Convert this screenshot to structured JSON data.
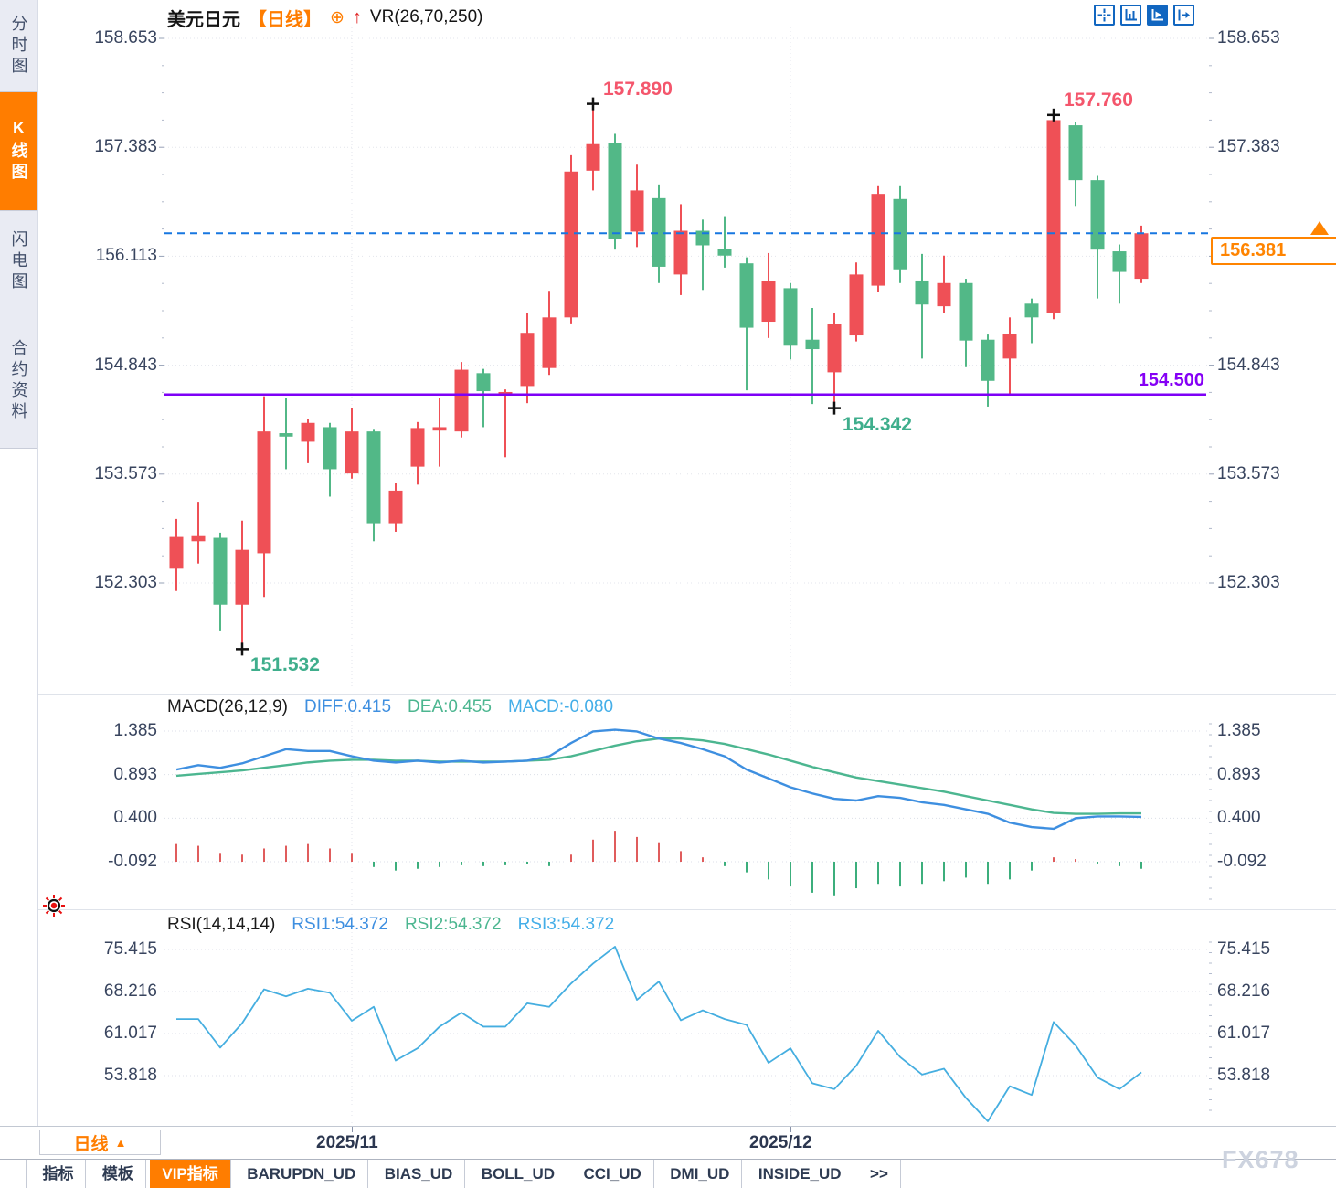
{
  "header": {
    "symbol": "美元日元",
    "period_tag": "【日线】",
    "plus_icon": "⊕",
    "indicator": "VR(26,70,250)"
  },
  "sidebar": {
    "items": [
      "分时图",
      "K线图",
      "闪电图",
      "合约资料"
    ],
    "active_index": 1
  },
  "toolbar_icons": [
    "pan-crosshair",
    "axis-scale",
    "axis-play-active",
    "collapse-right"
  ],
  "axes": {
    "main": [
      "158.653",
      "157.383",
      "156.113",
      "154.843",
      "153.573",
      "152.303"
    ],
    "macd": [
      "1.385",
      "0.893",
      "0.400",
      "-0.092"
    ],
    "rsi": [
      "75.415",
      "68.216",
      "61.017",
      "53.818"
    ]
  },
  "macd_header": {
    "title": "MACD(26,12,9)",
    "diff": "DIFF:0.415",
    "dea": "DEA:0.455",
    "macd": "MACD:-0.080"
  },
  "rsi_header": {
    "title": "RSI(14,14,14)",
    "rsi1": "RSI1:54.372",
    "rsi2": "RSI2:54.372",
    "rsi3": "RSI3:54.372"
  },
  "overlay": {
    "price_tag": "156.381",
    "support_label": "154.500"
  },
  "xaxis": {
    "period_button": "日线",
    "caret": "▲",
    "labels": [
      "2025/11",
      "2025/12"
    ]
  },
  "tabs": {
    "items": [
      "指标",
      "模板",
      "VIP指标",
      "BARUPDN_UD",
      "BIAS_UD",
      "BOLL_UD",
      "CCI_UD",
      "DMI_UD",
      "INSIDE_UD",
      ">>"
    ],
    "active_index": 2
  },
  "watermark": "FX678",
  "colors": {
    "accent_orange": "#ff7d00",
    "candle_up": "#ef5056",
    "candle_down": "#52b887",
    "support_purple": "#7e00f6",
    "last_price_blue": "#1777e0",
    "diff_blue": "#3e8fe0",
    "dea_green": "#4cb690",
    "rsi_line": "#45aee0",
    "hist_up": "#e05c5c",
    "hist_down": "#3cae7c",
    "annotation_up": "#f4566c",
    "annotation_down": "#3fae8c",
    "grid": "#e3e5ec",
    "tick": "#96a0b6",
    "axis_text": "#38445e",
    "toolbar_blue": "#1166c0",
    "marker_black": "#111111"
  },
  "chart_data": {
    "type": "candlestick",
    "title": "美元日元 日线 (USD/JPY daily)",
    "main_axis_values": [
      158.653,
      157.383,
      156.113,
      154.843,
      153.573,
      152.303
    ],
    "macd_axis_values": [
      1.385,
      0.893,
      0.4,
      -0.092
    ],
    "rsi_axis_values": [
      75.415,
      68.216,
      61.017,
      53.818
    ],
    "month_gridlines": [
      {
        "label": "2025/11",
        "index": 8
      },
      {
        "label": "2025/12",
        "index": 28
      }
    ],
    "support_line": 154.5,
    "last_price": 156.381,
    "candles": [
      [
        152.47,
        153.05,
        152.21,
        152.84
      ],
      [
        152.79,
        153.25,
        152.53,
        152.86
      ],
      [
        152.83,
        152.89,
        151.75,
        152.05
      ],
      [
        152.05,
        153.03,
        151.532,
        152.69
      ],
      [
        152.65,
        154.48,
        152.14,
        154.07
      ],
      [
        154.05,
        154.46,
        153.63,
        154.01
      ],
      [
        153.95,
        154.22,
        153.7,
        154.17
      ],
      [
        154.12,
        154.17,
        153.31,
        153.63
      ],
      [
        153.58,
        154.34,
        153.52,
        154.07
      ],
      [
        154.07,
        154.1,
        152.79,
        153.0
      ],
      [
        153.0,
        153.47,
        152.9,
        153.38
      ],
      [
        153.66,
        154.18,
        153.45,
        154.11
      ],
      [
        154.08,
        154.46,
        153.66,
        154.12
      ],
      [
        154.07,
        154.88,
        154.0,
        154.79
      ],
      [
        154.75,
        154.8,
        154.12,
        154.54
      ],
      [
        154.5,
        154.56,
        153.77,
        154.53
      ],
      [
        154.6,
        155.45,
        154.4,
        155.22
      ],
      [
        154.81,
        155.71,
        154.73,
        155.4
      ],
      [
        155.4,
        157.29,
        155.33,
        157.1
      ],
      [
        157.11,
        157.89,
        156.88,
        157.42
      ],
      [
        157.43,
        157.54,
        156.19,
        156.31
      ],
      [
        156.4,
        157.18,
        156.22,
        156.88
      ],
      [
        156.79,
        156.95,
        155.8,
        155.99
      ],
      [
        155.9,
        156.72,
        155.66,
        156.41
      ],
      [
        156.41,
        156.54,
        155.72,
        156.24
      ],
      [
        156.2,
        156.58,
        155.98,
        156.12
      ],
      [
        156.03,
        156.1,
        154.55,
        155.28
      ],
      [
        155.35,
        156.15,
        155.16,
        155.82
      ],
      [
        155.74,
        155.8,
        154.91,
        155.07
      ],
      [
        155.14,
        155.51,
        154.39,
        155.03
      ],
      [
        154.76,
        155.45,
        154.342,
        155.32
      ],
      [
        155.19,
        156.04,
        155.12,
        155.9
      ],
      [
        155.77,
        156.94,
        155.7,
        156.84
      ],
      [
        156.78,
        156.94,
        155.8,
        155.96
      ],
      [
        155.83,
        156.14,
        154.92,
        155.55
      ],
      [
        155.53,
        156.12,
        155.45,
        155.8
      ],
      [
        155.8,
        155.85,
        154.82,
        155.13
      ],
      [
        155.14,
        155.2,
        154.36,
        154.66
      ],
      [
        154.92,
        155.4,
        154.5,
        155.21
      ],
      [
        155.56,
        155.62,
        155.1,
        155.4
      ],
      [
        155.45,
        157.76,
        155.38,
        157.7
      ],
      [
        157.64,
        157.68,
        156.7,
        157.0
      ],
      [
        157.0,
        157.05,
        155.62,
        156.19
      ],
      [
        156.17,
        156.25,
        155.56,
        155.93
      ],
      [
        155.85,
        156.47,
        155.8,
        156.381
      ]
    ],
    "annotations": [
      {
        "text": "157.890",
        "index": 19,
        "price": 157.89,
        "placement": "above-right",
        "tone": "up"
      },
      {
        "text": "157.760",
        "index": 40,
        "price": 157.76,
        "placement": "above-right",
        "tone": "up"
      },
      {
        "text": "151.532",
        "index": 3,
        "price": 151.532,
        "placement": "below-right",
        "tone": "down"
      },
      {
        "text": "154.342",
        "index": 30,
        "price": 154.342,
        "placement": "below-right",
        "tone": "down"
      }
    ],
    "macd": {
      "params": "26,12,9",
      "diff": [
        0.95,
        1.0,
        0.97,
        1.02,
        1.1,
        1.18,
        1.16,
        1.16,
        1.1,
        1.05,
        1.03,
        1.05,
        1.03,
        1.05,
        1.03,
        1.04,
        1.05,
        1.1,
        1.25,
        1.38,
        1.4,
        1.38,
        1.3,
        1.25,
        1.18,
        1.1,
        0.95,
        0.85,
        0.75,
        0.68,
        0.62,
        0.6,
        0.65,
        0.63,
        0.58,
        0.55,
        0.5,
        0.45,
        0.35,
        0.3,
        0.28,
        0.4,
        0.42,
        0.42,
        0.415
      ],
      "dea": [
        0.88,
        0.9,
        0.92,
        0.94,
        0.97,
        1.0,
        1.03,
        1.05,
        1.06,
        1.06,
        1.05,
        1.05,
        1.04,
        1.04,
        1.04,
        1.04,
        1.05,
        1.06,
        1.1,
        1.16,
        1.22,
        1.27,
        1.3,
        1.3,
        1.28,
        1.24,
        1.18,
        1.12,
        1.05,
        0.98,
        0.92,
        0.86,
        0.82,
        0.78,
        0.74,
        0.7,
        0.65,
        0.6,
        0.55,
        0.5,
        0.46,
        0.45,
        0.45,
        0.455,
        0.455
      ],
      "hist": [
        0.2,
        0.18,
        0.1,
        0.08,
        0.15,
        0.18,
        0.2,
        0.15,
        0.1,
        -0.06,
        -0.1,
        -0.08,
        -0.06,
        -0.04,
        -0.05,
        -0.04,
        -0.03,
        -0.05,
        0.08,
        0.25,
        0.35,
        0.28,
        0.22,
        0.12,
        0.05,
        -0.05,
        -0.12,
        -0.2,
        -0.28,
        -0.35,
        -0.38,
        -0.3,
        -0.25,
        -0.28,
        -0.25,
        -0.22,
        -0.18,
        -0.25,
        -0.2,
        -0.1,
        0.05,
        0.03,
        -0.02,
        -0.05,
        -0.08
      ]
    },
    "rsi": {
      "params": "14,14,14",
      "values": [
        63.5,
        63.5,
        58.6,
        62.8,
        68.6,
        67.4,
        68.7,
        68.0,
        63.2,
        65.6,
        56.4,
        58.5,
        62.2,
        64.6,
        62.2,
        62.2,
        66.2,
        65.6,
        69.6,
        73.0,
        75.9,
        66.8,
        69.9,
        63.3,
        65.0,
        63.5,
        62.5,
        56.0,
        58.5,
        52.5,
        51.5,
        55.5,
        61.5,
        57.0,
        54.0,
        55.0,
        50.0,
        46.0,
        52.0,
        50.5,
        63.0,
        59.0,
        53.5,
        51.5,
        54.372
      ]
    }
  }
}
